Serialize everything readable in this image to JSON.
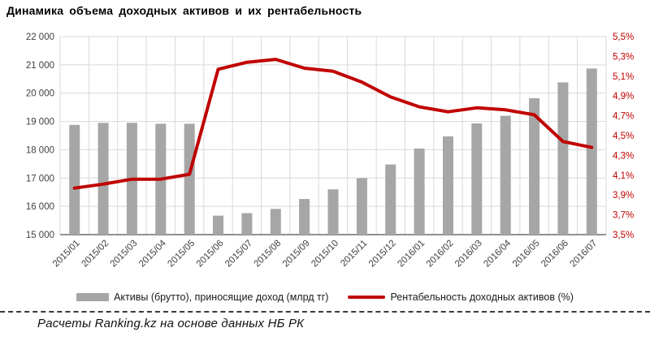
{
  "title": "Динамика объема доходных активов и их рентабельность",
  "footer": "Расчеты Ranking.kz на основе данных НБ РК",
  "legend": {
    "bars_label": "Активы (брутто), приносящие доход (млрд тг)",
    "line_label": "Рентабельность доходных активов (%)"
  },
  "colors": {
    "bar": "#a6a6a6",
    "line": "#c00000",
    "right_axis_text": "#c00000",
    "axis_text": "#404040",
    "grid": "#d9d9d9",
    "axis_line": "#808080"
  },
  "chart_data": {
    "type": "bar+line combo",
    "title": "Динамика объема доходных активов и их рентабельность",
    "grid": true,
    "legend_position": "bottom",
    "categories": [
      "2015/01",
      "2015/02",
      "2015/03",
      "2015/04",
      "2015/05",
      "2015/06",
      "2015/07",
      "2015/08",
      "2015/09",
      "2015/10",
      "2015/11",
      "2015/12",
      "2016/01",
      "2016/02",
      "2016/03",
      "2016/04",
      "2016/05",
      "2016/06",
      "2016/07"
    ],
    "series": [
      {
        "name": "Активы (брутто), приносящие доход (млрд тг)",
        "type": "bar",
        "axis": "left",
        "values": [
          18880,
          18950,
          18950,
          18920,
          18920,
          15670,
          15760,
          15910,
          16260,
          16600,
          17000,
          17480,
          18040,
          18470,
          18930,
          19200,
          19820,
          20380,
          20870
        ]
      },
      {
        "name": "Рентабельность доходных активов (%)",
        "type": "line",
        "axis": "right",
        "values": [
          3.97,
          4.01,
          4.06,
          4.06,
          4.11,
          5.17,
          5.24,
          5.27,
          5.18,
          5.15,
          5.04,
          4.89,
          4.79,
          4.74,
          4.78,
          4.76,
          4.71,
          4.44,
          4.38
        ]
      }
    ],
    "left_axis": {
      "min": 15000,
      "max": 22000,
      "step": 1000,
      "tick_labels": [
        "22 000",
        "21 000",
        "20 000",
        "19 000",
        "18 000",
        "17 000",
        "16 000",
        "15 000"
      ]
    },
    "right_axis": {
      "min": 3.5,
      "max": 5.5,
      "step": 0.2,
      "tick_labels": [
        "5,5%",
        "5,3%",
        "5,1%",
        "4,9%",
        "4,7%",
        "4,5%",
        "4,3%",
        "4,1%",
        "3,9%",
        "3,7%",
        "3,5%"
      ]
    }
  }
}
